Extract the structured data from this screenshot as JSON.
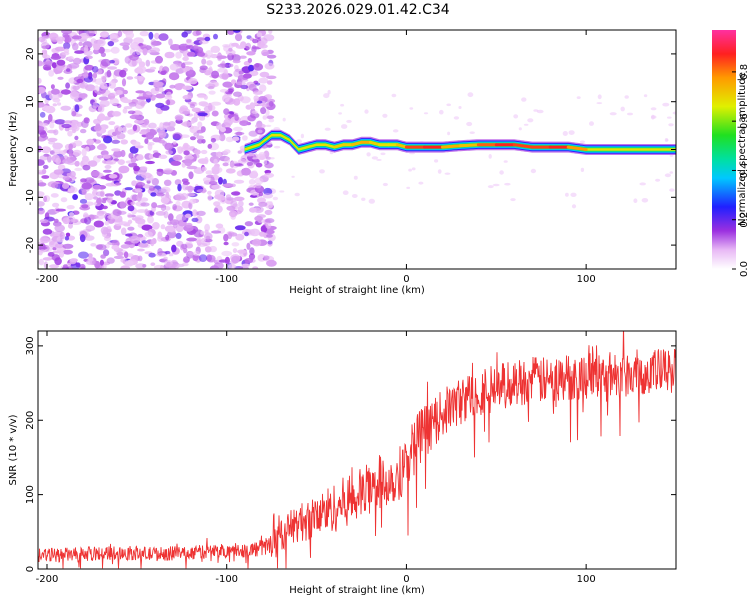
{
  "title": "S233.2026.029.01.42.C34",
  "chart_data": [
    {
      "type": "heatmap",
      "name": "spectrogram",
      "xlabel": "Height of straight line (km)",
      "ylabel": "Frequency (Hz)",
      "xlim": [
        -205,
        150
      ],
      "ylim": [
        -25,
        25
      ],
      "xticks": [
        -200,
        -100,
        0,
        100
      ],
      "xtick_labels": [
        "-200",
        "-100",
        "0",
        "100"
      ],
      "yticks": [
        -20,
        -10,
        0,
        10,
        20
      ],
      "ytick_labels": [
        "-20",
        "-10",
        "0",
        "10",
        "20"
      ],
      "noise_region_x": [
        -205,
        -85
      ],
      "signal_track": {
        "x": [
          -90,
          -82,
          -75,
          -70,
          -65,
          -60,
          -55,
          -50,
          -45,
          -40,
          -35,
          -30,
          -25,
          -20,
          -15,
          -10,
          -5,
          0,
          10,
          20,
          30,
          40,
          50,
          60,
          70,
          80,
          90,
          100,
          110,
          120,
          130,
          140,
          150
        ],
        "freq": [
          0,
          1,
          3,
          3,
          2,
          0,
          0.5,
          1,
          1,
          0.5,
          1,
          1,
          1.5,
          1.5,
          1,
          1,
          1,
          0.5,
          0.5,
          0.5,
          0.8,
          1,
          1,
          1,
          0.5,
          0.5,
          0.5,
          0,
          0,
          0,
          0,
          0,
          0
        ],
        "amplitude": [
          0.3,
          0.4,
          0.45,
          0.45,
          0.45,
          0.5,
          0.5,
          0.55,
          0.6,
          0.7,
          0.75,
          0.7,
          0.8,
          0.75,
          0.7,
          0.7,
          0.7,
          0.8,
          0.95,
          0.85,
          0.7,
          0.8,
          0.9,
          0.9,
          0.85,
          0.9,
          0.9,
          0.7,
          0.6,
          0.6,
          0.55,
          0.5,
          0.5
        ]
      },
      "colorbar": {
        "label": "Normalized spectral amplitude",
        "range": [
          0.0,
          0.97
        ],
        "ticks": [
          0.0,
          0.2,
          0.4,
          0.6,
          0.8
        ],
        "tick_labels": [
          "0.0",
          "0.2",
          "0.4",
          "0.6",
          "0.8"
        ],
        "colormap": "rainbow (white-magenta-blue-cyan-green-yellow-orange-red-pink)"
      }
    },
    {
      "type": "line",
      "name": "snr",
      "xlabel": "Height of straight line (km)",
      "ylabel": "SNR (10 * v/v)",
      "xlim": [
        -205,
        150
      ],
      "ylim": [
        0,
        320
      ],
      "xticks": [
        -200,
        -100,
        0,
        100
      ],
      "xtick_labels": [
        "-200",
        "-100",
        "0",
        "100"
      ],
      "yticks": [
        0,
        100,
        200,
        300
      ],
      "ytick_labels": [
        "0",
        "100",
        "200",
        "300"
      ],
      "color": "#ee3333",
      "series": [
        {
          "name": "SNR",
          "x": [
            -205,
            -180,
            -160,
            -140,
            -120,
            -100,
            -90,
            -80,
            -75,
            -70,
            -65,
            -60,
            -55,
            -50,
            -45,
            -40,
            -35,
            -30,
            -25,
            -20,
            -15,
            -10,
            -5,
            0,
            5,
            10,
            15,
            20,
            30,
            40,
            50,
            60,
            70,
            80,
            90,
            100,
            110,
            120,
            130,
            140,
            150
          ],
          "y": [
            18,
            20,
            22,
            20,
            22,
            25,
            25,
            28,
            35,
            45,
            55,
            62,
            65,
            70,
            78,
            82,
            90,
            95,
            100,
            110,
            115,
            120,
            125,
            145,
            170,
            185,
            195,
            210,
            225,
            240,
            245,
            250,
            255,
            252,
            258,
            260,
            262,
            262,
            265,
            265,
            265
          ],
          "spread": [
            12,
            12,
            12,
            12,
            12,
            12,
            12,
            15,
            18,
            25,
            30,
            32,
            35,
            38,
            40,
            42,
            42,
            45,
            45,
            45,
            45,
            45,
            45,
            50,
            50,
            45,
            40,
            40,
            40,
            40,
            40,
            40,
            40,
            40,
            40,
            40,
            40,
            40,
            40,
            40,
            40
          ]
        }
      ]
    }
  ]
}
